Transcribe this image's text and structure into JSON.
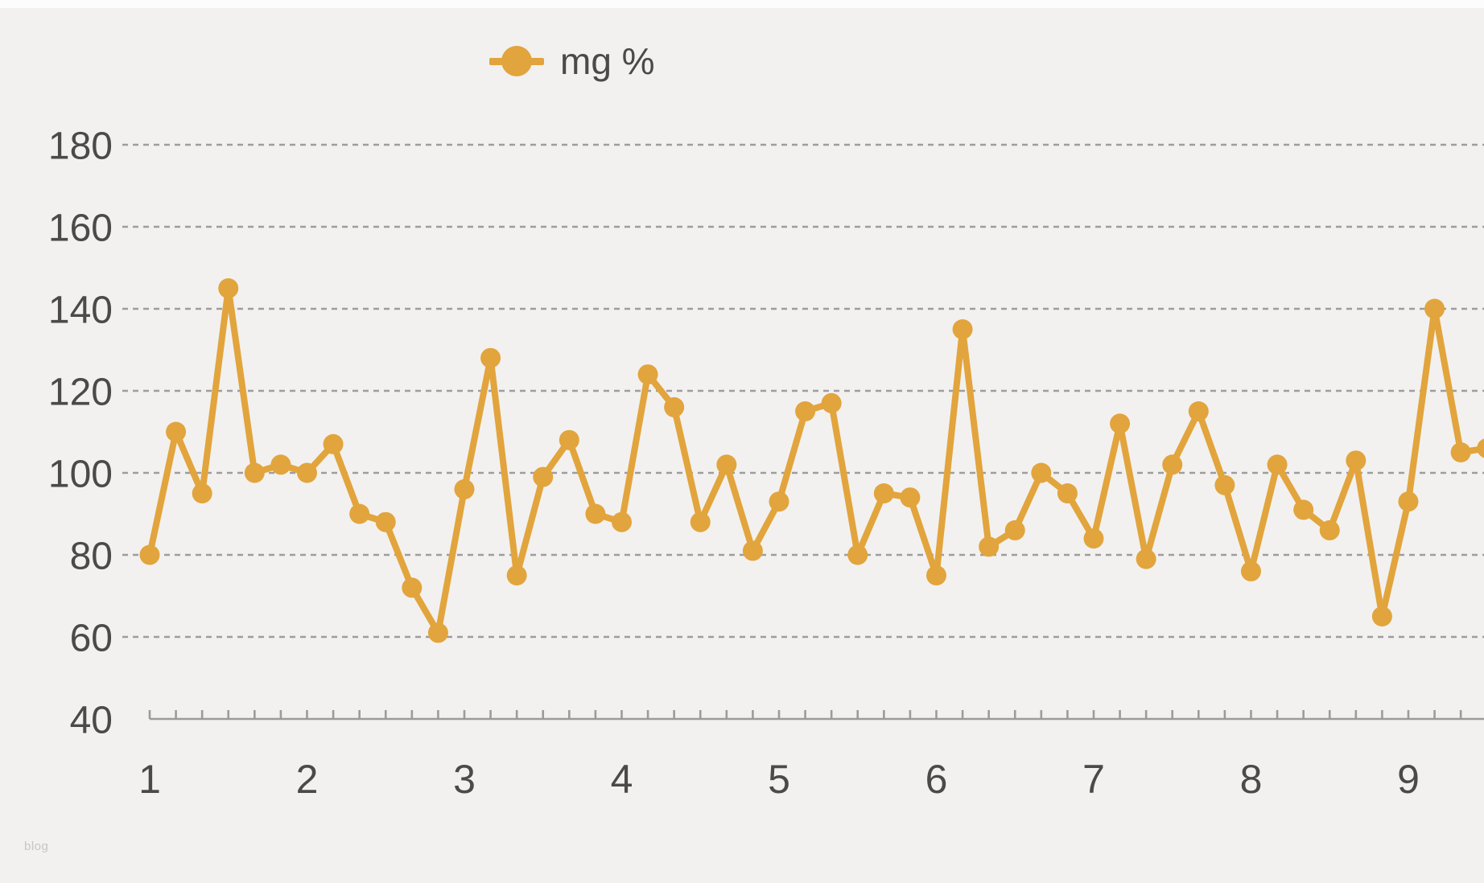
{
  "page": {
    "watermark": "blog"
  },
  "legend": {
    "label": "mg %"
  },
  "colors": {
    "series": "#e2a43c",
    "grid": "#8f8f8f",
    "axis": "#9b9b9b",
    "text": "#4a4a4a",
    "background": "#f2f1ef",
    "watermark": "#c6c6c4"
  },
  "chart_data": {
    "type": "line",
    "title": "",
    "legend_position": "top",
    "grid": {
      "horizontal_dashed": true,
      "vertical": false
    },
    "x_axis": {
      "tick_labels": [
        "1",
        "2",
        "3",
        "4",
        "5",
        "6",
        "7",
        "8",
        "9"
      ],
      "points_per_interval": 6,
      "x_start": 1,
      "x_step": 0.1667
    },
    "y_axis": {
      "tick_values": [
        40,
        60,
        80,
        100,
        120,
        140,
        160,
        180
      ],
      "min": 40,
      "max": 190
    },
    "series": [
      {
        "name": "mg %",
        "color": "#e2a43c",
        "values": [
          80,
          110,
          95,
          145,
          100,
          102,
          100,
          107,
          90,
          88,
          72,
          61,
          96,
          128,
          75,
          99,
          108,
          90,
          88,
          124,
          116,
          88,
          102,
          81,
          93,
          115,
          117,
          80,
          95,
          94,
          75,
          135,
          82,
          86,
          100,
          95,
          84,
          112,
          79,
          102,
          115,
          97,
          76,
          102,
          91,
          86,
          103,
          65,
          93,
          140,
          105,
          106
        ]
      }
    ]
  }
}
